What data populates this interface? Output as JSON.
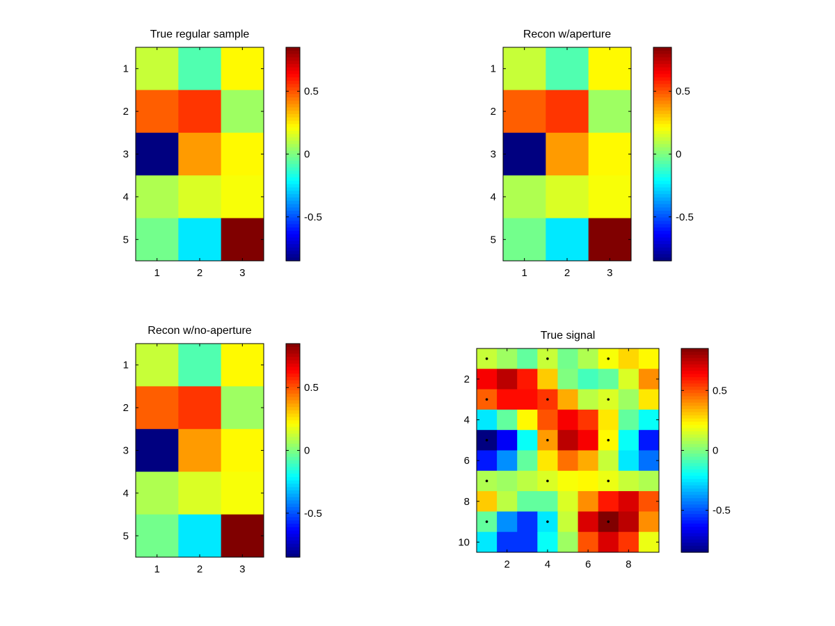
{
  "chart_data": [
    {
      "type": "heatmap",
      "title": "True regular sample",
      "xlabel": "",
      "ylabel": "",
      "x_ticks": [
        "1",
        "2",
        "3"
      ],
      "y_ticks": [
        "1",
        "2",
        "3",
        "4",
        "5"
      ],
      "values": [
        [
          0.12,
          -0.08,
          0.22
        ],
        [
          0.48,
          0.55,
          0.05
        ],
        [
          -0.85,
          0.38,
          0.22
        ],
        [
          0.08,
          0.15,
          0.2
        ],
        [
          -0.02,
          -0.25,
          0.85
        ]
      ],
      "colorbar": {
        "range": [
          -0.85,
          0.85
        ],
        "ticks": [
          "0.5",
          "0",
          "-0.5"
        ],
        "tick_values": [
          0.5,
          0,
          -0.5
        ]
      }
    },
    {
      "type": "heatmap",
      "title": "Recon w/aperture",
      "xlabel": "",
      "ylabel": "",
      "x_ticks": [
        "1",
        "2",
        "3"
      ],
      "y_ticks": [
        "1",
        "2",
        "3",
        "4",
        "5"
      ],
      "values": [
        [
          0.12,
          -0.08,
          0.22
        ],
        [
          0.48,
          0.55,
          0.05
        ],
        [
          -0.85,
          0.38,
          0.22
        ],
        [
          0.08,
          0.15,
          0.2
        ],
        [
          -0.02,
          -0.25,
          0.85
        ]
      ],
      "colorbar": {
        "range": [
          -0.85,
          0.85
        ],
        "ticks": [
          "0.5",
          "0",
          "-0.5"
        ],
        "tick_values": [
          0.5,
          0,
          -0.5
        ]
      }
    },
    {
      "type": "heatmap",
      "title": "Recon w/no-aperture",
      "xlabel": "",
      "ylabel": "",
      "x_ticks": [
        "1",
        "2",
        "3"
      ],
      "y_ticks": [
        "1",
        "2",
        "3",
        "4",
        "5"
      ],
      "values": [
        [
          0.12,
          -0.08,
          0.22
        ],
        [
          0.48,
          0.55,
          0.05
        ],
        [
          -0.85,
          0.38,
          0.22
        ],
        [
          0.08,
          0.15,
          0.2
        ],
        [
          -0.02,
          -0.25,
          0.85
        ]
      ],
      "colorbar": {
        "range": [
          -0.85,
          0.85
        ],
        "ticks": [
          "0.5",
          "0",
          "-0.5"
        ],
        "tick_values": [
          0.5,
          0,
          -0.5
        ]
      }
    },
    {
      "type": "heatmap",
      "title": "True signal",
      "xlabel": "",
      "ylabel": "",
      "x_ticks": [
        "2",
        "4",
        "6",
        "8"
      ],
      "y_ticks": [
        "2",
        "4",
        "6",
        "8",
        "10"
      ],
      "values": [
        [
          0.12,
          0.05,
          -0.05,
          0.12,
          -0.02,
          0.08,
          0.2,
          0.28,
          0.22
        ],
        [
          0.65,
          0.75,
          0.6,
          0.3,
          0.0,
          -0.1,
          -0.05,
          0.15,
          0.4
        ],
        [
          0.48,
          0.62,
          0.62,
          0.55,
          0.35,
          0.1,
          0.15,
          0.05,
          0.25
        ],
        [
          -0.25,
          -0.05,
          0.22,
          0.5,
          0.65,
          0.55,
          0.25,
          -0.05,
          -0.2
        ],
        [
          -0.85,
          -0.65,
          -0.2,
          0.38,
          0.75,
          0.65,
          0.22,
          -0.2,
          -0.6
        ],
        [
          -0.6,
          -0.4,
          -0.05,
          0.25,
          0.45,
          0.35,
          0.12,
          -0.25,
          -0.45
        ],
        [
          0.08,
          0.05,
          0.1,
          0.15,
          0.2,
          0.22,
          0.18,
          0.12,
          0.08
        ],
        [
          0.3,
          0.1,
          -0.05,
          -0.05,
          0.15,
          0.4,
          0.6,
          0.7,
          0.5
        ],
        [
          -0.05,
          -0.4,
          -0.55,
          -0.25,
          0.12,
          0.7,
          0.85,
          0.75,
          0.4
        ],
        [
          -0.25,
          -0.55,
          -0.55,
          -0.2,
          0.05,
          0.5,
          0.7,
          0.55,
          0.18
        ]
      ],
      "sample_markers": [
        [
          1,
          1
        ],
        [
          1,
          4
        ],
        [
          1,
          7
        ],
        [
          3,
          1
        ],
        [
          3,
          4
        ],
        [
          3,
          7
        ],
        [
          5,
          1
        ],
        [
          5,
          4
        ],
        [
          5,
          7
        ],
        [
          7,
          1
        ],
        [
          7,
          4
        ],
        [
          7,
          7
        ],
        [
          9,
          1
        ],
        [
          9,
          4
        ],
        [
          9,
          7
        ]
      ],
      "colorbar": {
        "range": [
          -0.85,
          0.85
        ],
        "ticks": [
          "0.5",
          "0",
          "-0.5"
        ],
        "tick_values": [
          0.5,
          0,
          -0.5
        ]
      }
    }
  ]
}
